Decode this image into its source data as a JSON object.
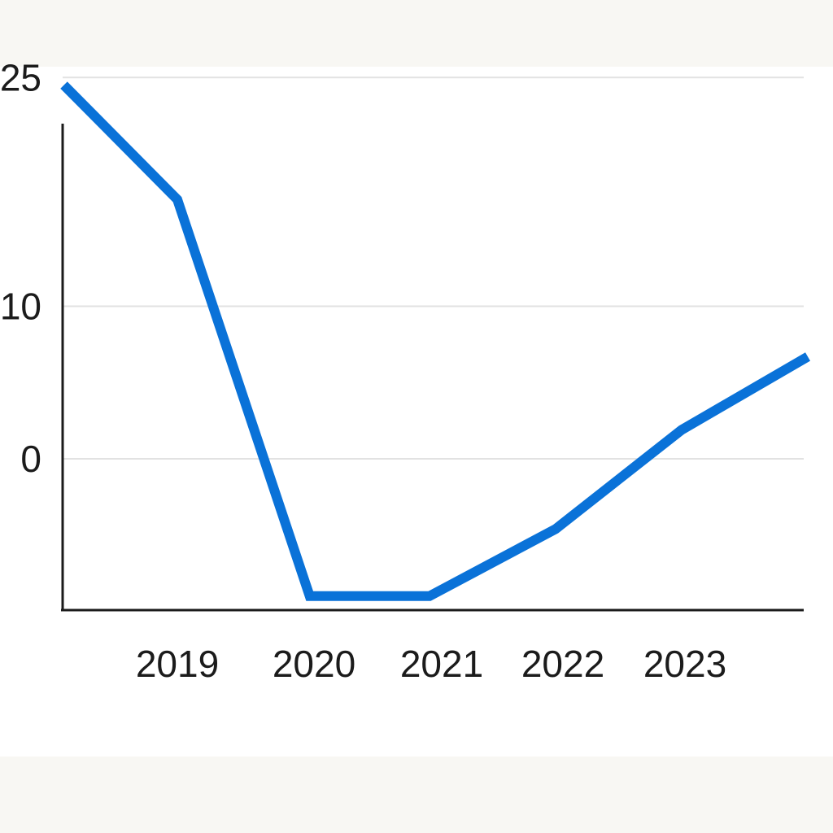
{
  "chart_data": {
    "type": "line",
    "title": "",
    "xlabel": "",
    "ylabel": "",
    "x_ticks": [
      "2019",
      "2020",
      "2021",
      "2022",
      "2023"
    ],
    "y_ticks": [
      "25",
      "10",
      "0"
    ],
    "y_tick_values": [
      25,
      10,
      0
    ],
    "grid": true,
    "legend": "none",
    "series": [
      {
        "color": "#0a72d8",
        "points": [
          {
            "x": 2018.1,
            "y": 24.5
          },
          {
            "x": 2019.0,
            "y": 17.0
          },
          {
            "x": 2020.05,
            "y": -9.0
          },
          {
            "x": 2021.0,
            "y": -9.0
          },
          {
            "x": 2022.0,
            "y": -4.6
          },
          {
            "x": 2023.0,
            "y": 1.9
          },
          {
            "x": 2024.0,
            "y": 6.7
          }
        ]
      }
    ]
  }
}
